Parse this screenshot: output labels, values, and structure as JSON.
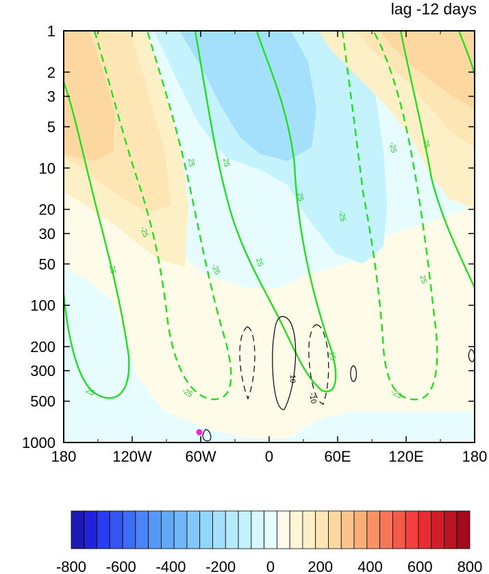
{
  "chart_data": {
    "type": "contour",
    "title": "lag -12 days",
    "x_ticks": [
      "180",
      "120W",
      "60W",
      "0",
      "60E",
      "120E",
      "180"
    ],
    "x_values": [
      -180,
      -120,
      -60,
      0,
      60,
      120,
      180
    ],
    "y_ticks": [
      "1",
      "2",
      "3",
      "5",
      "10",
      "20",
      "30",
      "50",
      "100",
      "200",
      "300",
      "500",
      "1000"
    ],
    "y_values": [
      1,
      2,
      3,
      5,
      10,
      20,
      30,
      50,
      100,
      200,
      300,
      500,
      1000
    ],
    "y_scale": "log",
    "y_direction": "inverted",
    "colorbar": {
      "tick_labels": [
        "-800",
        "-600",
        "-400",
        "-200",
        "0",
        "200",
        "400",
        "600",
        "800"
      ],
      "tick_values": [
        -800,
        -600,
        -400,
        -200,
        0,
        200,
        400,
        600,
        800
      ],
      "levels": [
        -800,
        -750,
        -700,
        -650,
        -600,
        -550,
        -500,
        -450,
        -400,
        -350,
        -300,
        -250,
        -200,
        -150,
        -100,
        -50,
        0,
        50,
        100,
        150,
        200,
        250,
        300,
        350,
        400,
        450,
        500,
        550,
        600,
        650,
        700,
        750,
        800
      ],
      "colors": [
        "#1b1bb4",
        "#2222dc",
        "#2a3cf0",
        "#3456f2",
        "#3e6cf4",
        "#4a84f6",
        "#5698f6",
        "#62a8f6",
        "#72b8f8",
        "#82c8f8",
        "#92d6fa",
        "#a4e0fb",
        "#b4eafc",
        "#c4f2fd",
        "#d4f8fe",
        "#e6fcfe",
        "#fefce8",
        "#fef6d6",
        "#fef0c6",
        "#fde6b4",
        "#fcd8a0",
        "#fbc48c",
        "#faae78",
        "#f89266",
        "#f67656",
        "#f45a4a",
        "#f2403e",
        "#e62e32",
        "#d01e2a",
        "#b81422",
        "#a00c1c"
      ]
    },
    "contour_labels": {
      "green": [
        "25",
        "-25"
      ],
      "black": [
        "10",
        "-10"
      ]
    }
  }
}
